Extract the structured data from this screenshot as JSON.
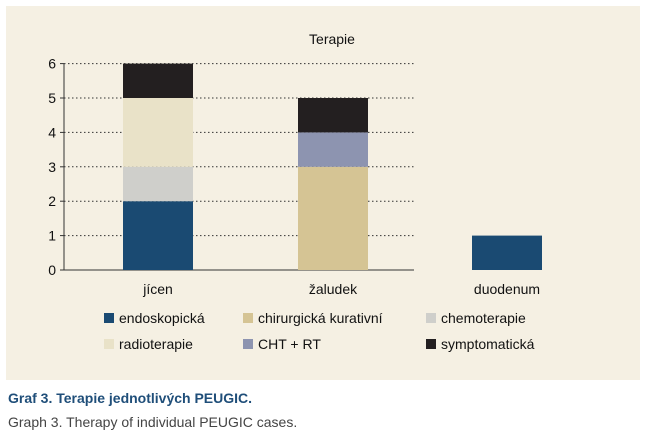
{
  "chart_data": {
    "type": "bar",
    "stacked": true,
    "title": "Terapie",
    "categories": [
      "jícen",
      "žaludek",
      "duodenum"
    ],
    "series": [
      {
        "name": "endoskopická",
        "color": "#1a4a72",
        "values": [
          2,
          0,
          1
        ]
      },
      {
        "name": "chirurgická kurativní",
        "color": "#d5c494",
        "values": [
          0,
          3,
          0
        ]
      },
      {
        "name": "chemoterapie",
        "color": "#cfcfcb",
        "values": [
          1,
          0,
          0
        ]
      },
      {
        "name": "radioterapie",
        "color": "#e9e2c8",
        "values": [
          2,
          0,
          0
        ]
      },
      {
        "name": "CHT + RT",
        "color": "#8d94b0",
        "values": [
          0,
          1,
          0
        ]
      },
      {
        "name": "symptomatická",
        "color": "#231f20",
        "values": [
          1,
          1,
          0
        ]
      }
    ],
    "yticks": [
      0,
      1,
      2,
      3,
      4,
      5,
      6
    ],
    "ylim": [
      0,
      6
    ],
    "grid": true,
    "legend_position": "bottom"
  },
  "caption": {
    "cz": "Graf 3. Terapie jednotlivých PEUGIC.",
    "en": "Graph 3. Therapy of individual PEUGIC cases."
  }
}
